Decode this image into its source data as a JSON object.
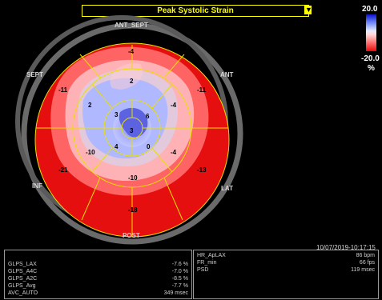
{
  "header": {
    "title": "Peak Systolic Strain",
    "dropdown_icon": "chevron-down-icon"
  },
  "color_scale": {
    "max_label": "20.0",
    "min_label": "-20.0",
    "unit": "%",
    "colors": {
      "positive": "#1018c8",
      "zero": "#ffffff",
      "negative": "#e80d0d"
    }
  },
  "wall_labels": {
    "ant_sept": "ANT_SEPT",
    "ant": "ANT",
    "lat": "LAT",
    "post": "POST",
    "inf": "INF",
    "sept": "SEPT"
  },
  "segments": {
    "basal": [
      "-4",
      "-11",
      "-13",
      "-18",
      "-21",
      "-11"
    ],
    "mid": [
      "2",
      "-4",
      "-4",
      "-10",
      "-10",
      "2"
    ],
    "apical": [
      "6",
      "0",
      "4",
      "3"
    ],
    "apex": "3"
  },
  "timestamp": "10/07/2019-10:17:15",
  "measurements_left": [
    {
      "label": "GLPS_LAX",
      "value": "-7.6 %"
    },
    {
      "label": "GLPS_A4C",
      "value": "-7.0 %"
    },
    {
      "label": "GLPS_A2C",
      "value": "-8.5 %"
    },
    {
      "label": "GLPS_Avg",
      "value": "-7.7 %"
    },
    {
      "label": "AVC_AUTO",
      "value": "349 msec"
    }
  ],
  "measurements_right": [
    {
      "label": "HR_ApLAX",
      "value": "86 bpm"
    },
    {
      "label": "FR_min",
      "value": "66 fps"
    },
    {
      "label": "PSD",
      "value": "119 msec"
    }
  ]
}
